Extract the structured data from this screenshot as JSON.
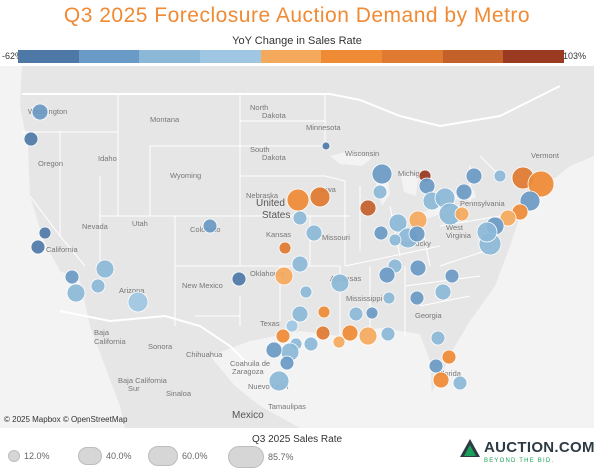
{
  "title": "Q3 2025 Foreclosure Auction Demand by Metro",
  "color_legend": {
    "title": "YoY Change in Sales Rate",
    "min_label": "-62%",
    "max_label": "103%",
    "colors": [
      "#4e79a7",
      "#6a9ac6",
      "#8cb8d8",
      "#9fc7e3",
      "#f5a95c",
      "#ef8a35",
      "#e07a30",
      "#c4602a",
      "#9a3a20"
    ]
  },
  "attribution": "© 2025 Mapbox © OpenStreetMap",
  "size_legend": {
    "title": "Q3 2025 Sales Rate",
    "items": [
      "12.0%",
      "40.0%",
      "60.0%",
      "85.7%"
    ]
  },
  "logo": {
    "word": "AUCTION.COM",
    "tagline": "BEYOND THE BID."
  },
  "map_labels": {
    "states": [
      "Washington",
      "Oregon",
      "Idaho",
      "Montana",
      "North Dakota",
      "South Dakota",
      "Minnesota",
      "Wisconsin",
      "Wyoming",
      "Nebraska",
      "Iowa",
      "Nevada",
      "Utah",
      "Colorado",
      "Kansas",
      "Missouri",
      "California",
      "Arizona",
      "New Mexico",
      "Oklahoma",
      "Texas",
      "Arkansas",
      "Mississippi",
      "Georgia",
      "Kentucky",
      "West Virginia",
      "Pennsylvania",
      "Michigan",
      "Vermont",
      "Florida"
    ],
    "other": [
      "United States",
      "Mexico",
      "Baja California",
      "Sonora",
      "Chihuahua",
      "Coahuila de Zaragoza",
      "Nuevo León",
      "Baja California Sur",
      "Sinaloa",
      "Tamaulipas"
    ]
  }
}
